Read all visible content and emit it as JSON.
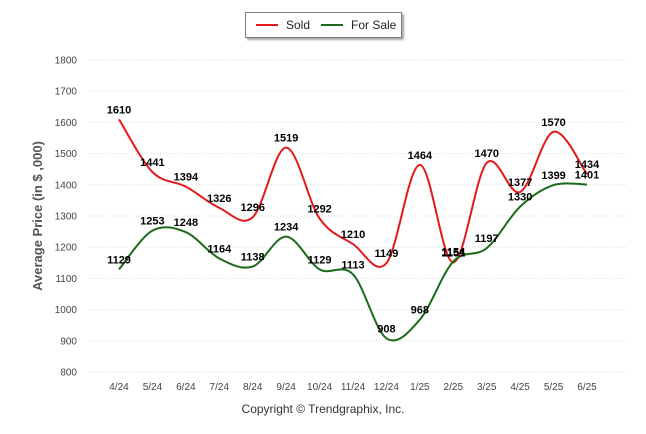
{
  "chart_data": {
    "type": "line",
    "categories": [
      "4/24",
      "5/24",
      "6/24",
      "7/24",
      "8/24",
      "9/24",
      "10/24",
      "11/24",
      "12/24",
      "1/25",
      "2/25",
      "3/25",
      "4/25",
      "5/25",
      "6/25"
    ],
    "series": [
      {
        "name": "Sold",
        "color": "#e31a1c",
        "values": [
          1610,
          1441,
          1394,
          1326,
          1296,
          1519,
          1292,
          1210,
          1149,
          1464,
          1151,
          1470,
          1377,
          1570,
          1434
        ]
      },
      {
        "name": "For Sale",
        "color": "#1b6b1b",
        "values": [
          1129,
          1253,
          1248,
          1164,
          1138,
          1234,
          1129,
          1113,
          908,
          968,
          1154,
          1197,
          1330,
          1399,
          1401
        ]
      }
    ],
    "ylabel": "Average Price (in $ ,000)",
    "ylim": [
      800,
      1800
    ],
    "yticks": [
      800,
      900,
      1000,
      1100,
      1200,
      1300,
      1400,
      1500,
      1600,
      1700,
      1800
    ],
    "grid": true,
    "legend_position": "top-center"
  },
  "footer": {
    "copyright": "Copyright © Trendgraphix, Inc."
  }
}
